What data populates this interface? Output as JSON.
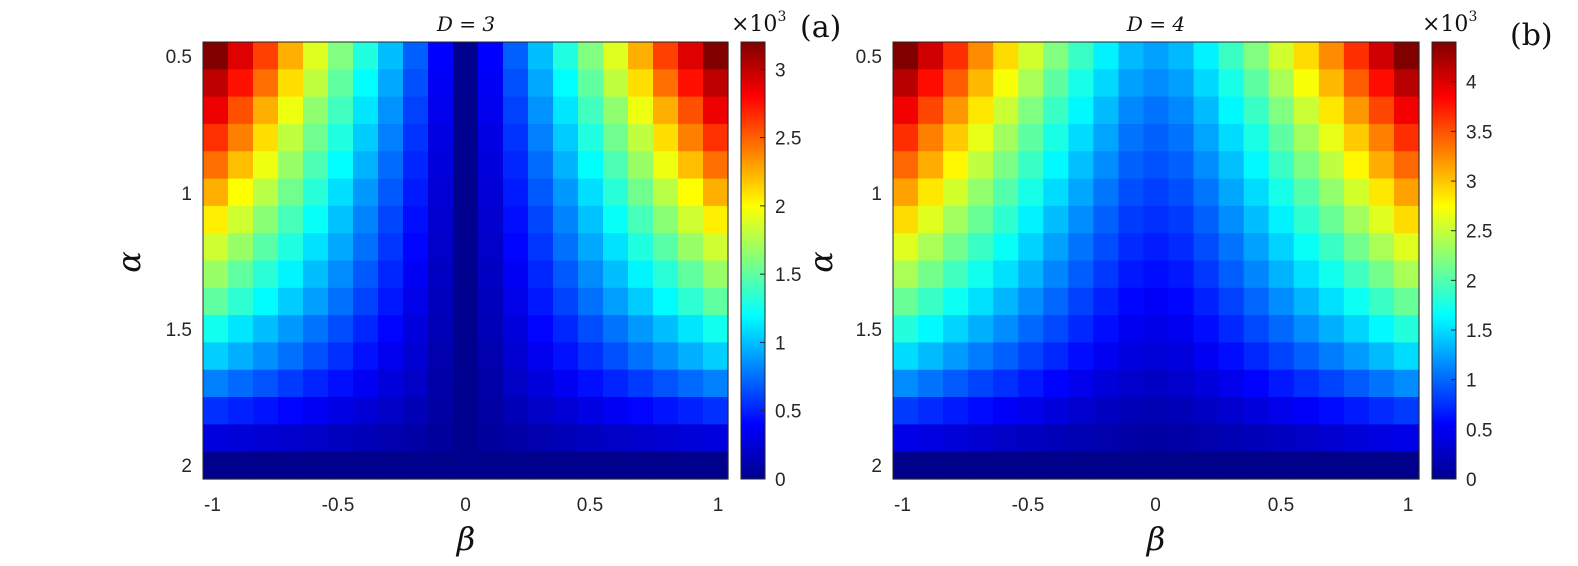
{
  "chart_data": [
    {
      "type": "heatmap",
      "panel_label": "(a)",
      "title": "D = 3",
      "xlabel": "β",
      "ylabel": "α",
      "x_ticks": [
        "-1",
        "-0.5",
        "0",
        "0.5",
        "1"
      ],
      "y_ticks": [
        "0.5",
        "1",
        "1.5",
        "2"
      ],
      "colorbar": {
        "multiplier": "×10",
        "multiplier_exp": "3",
        "ticks": [
          "0",
          "0.5",
          "1",
          "1.5",
          "2",
          "2.5",
          "3"
        ],
        "range": [
          0,
          3.2
        ]
      },
      "beta": [
        -1.0,
        -0.9,
        -0.8,
        -0.7,
        -0.6,
        -0.5,
        -0.4,
        -0.3,
        -0.2,
        -0.1,
        0.0,
        0.1,
        0.2,
        0.3,
        0.4,
        0.5,
        0.6,
        0.7,
        0.8,
        0.9,
        1.0
      ],
      "alpha": [
        0.5,
        0.6,
        0.7,
        0.8,
        0.9,
        1.0,
        1.1,
        1.2,
        1.3,
        1.4,
        1.5,
        1.6,
        1.7,
        1.8,
        1.9,
        2.0
      ],
      "values": [
        [
          3.2,
          2.9,
          2.6,
          2.25,
          1.9,
          1.6,
          1.3,
          1.0,
          0.7,
          0.4,
          0.05,
          0.4,
          0.7,
          1.0,
          1.3,
          1.6,
          1.9,
          2.25,
          2.6,
          2.9,
          3.2
        ],
        [
          3.0,
          2.75,
          2.45,
          2.1,
          1.8,
          1.5,
          1.2,
          0.93,
          0.65,
          0.37,
          0.05,
          0.37,
          0.65,
          0.93,
          1.2,
          1.5,
          1.8,
          2.1,
          2.45,
          2.75,
          3.0
        ],
        [
          2.85,
          2.55,
          2.25,
          1.95,
          1.65,
          1.4,
          1.12,
          0.86,
          0.6,
          0.34,
          0.05,
          0.34,
          0.6,
          0.86,
          1.12,
          1.4,
          1.65,
          1.95,
          2.25,
          2.55,
          2.85
        ],
        [
          2.65,
          2.4,
          2.1,
          1.8,
          1.55,
          1.3,
          1.04,
          0.8,
          0.56,
          0.31,
          0.05,
          0.31,
          0.56,
          0.8,
          1.04,
          1.3,
          1.55,
          1.8,
          2.1,
          2.4,
          2.65
        ],
        [
          2.45,
          2.2,
          1.95,
          1.68,
          1.44,
          1.2,
          0.96,
          0.74,
          0.52,
          0.29,
          0.05,
          0.29,
          0.52,
          0.74,
          0.96,
          1.2,
          1.44,
          1.68,
          1.95,
          2.2,
          2.45
        ],
        [
          2.25,
          2.0,
          1.78,
          1.55,
          1.33,
          1.1,
          0.88,
          0.68,
          0.48,
          0.27,
          0.05,
          0.27,
          0.48,
          0.68,
          0.88,
          1.1,
          1.33,
          1.55,
          1.78,
          2.0,
          2.25
        ],
        [
          2.05,
          1.85,
          1.63,
          1.42,
          1.22,
          1.01,
          0.81,
          0.62,
          0.44,
          0.25,
          0.05,
          0.25,
          0.44,
          0.62,
          0.81,
          1.01,
          1.22,
          1.42,
          1.63,
          1.85,
          2.05
        ],
        [
          1.85,
          1.68,
          1.48,
          1.3,
          1.11,
          0.93,
          0.75,
          0.57,
          0.41,
          0.23,
          0.05,
          0.23,
          0.41,
          0.57,
          0.75,
          0.93,
          1.11,
          1.3,
          1.48,
          1.68,
          1.85
        ],
        [
          1.68,
          1.5,
          1.33,
          1.17,
          1.0,
          0.84,
          0.68,
          0.52,
          0.37,
          0.21,
          0.05,
          0.21,
          0.37,
          0.52,
          0.68,
          0.84,
          1.0,
          1.17,
          1.33,
          1.5,
          1.68
        ],
        [
          1.5,
          1.34,
          1.19,
          1.04,
          0.9,
          0.75,
          0.61,
          0.47,
          0.33,
          0.19,
          0.05,
          0.19,
          0.33,
          0.47,
          0.61,
          0.75,
          0.9,
          1.04,
          1.19,
          1.34,
          1.5
        ],
        [
          1.25,
          1.12,
          1.0,
          0.88,
          0.76,
          0.64,
          0.52,
          0.41,
          0.29,
          0.17,
          0.05,
          0.17,
          0.29,
          0.41,
          0.52,
          0.64,
          0.76,
          0.88,
          1.0,
          1.12,
          1.25
        ],
        [
          1.05,
          0.95,
          0.85,
          0.75,
          0.65,
          0.55,
          0.45,
          0.35,
          0.26,
          0.15,
          0.05,
          0.15,
          0.26,
          0.35,
          0.45,
          0.55,
          0.65,
          0.75,
          0.85,
          0.95,
          1.05
        ],
        [
          0.8,
          0.73,
          0.66,
          0.58,
          0.51,
          0.44,
          0.36,
          0.29,
          0.22,
          0.13,
          0.05,
          0.13,
          0.22,
          0.29,
          0.36,
          0.44,
          0.51,
          0.58,
          0.66,
          0.73,
          0.8
        ],
        [
          0.55,
          0.5,
          0.46,
          0.41,
          0.37,
          0.32,
          0.27,
          0.22,
          0.17,
          0.11,
          0.05,
          0.11,
          0.17,
          0.22,
          0.27,
          0.32,
          0.37,
          0.41,
          0.46,
          0.5,
          0.55
        ],
        [
          0.3,
          0.28,
          0.26,
          0.24,
          0.22,
          0.2,
          0.17,
          0.15,
          0.12,
          0.09,
          0.05,
          0.09,
          0.12,
          0.15,
          0.17,
          0.2,
          0.22,
          0.24,
          0.26,
          0.28,
          0.3
        ],
        [
          0.04,
          0.04,
          0.04,
          0.04,
          0.04,
          0.04,
          0.04,
          0.04,
          0.04,
          0.04,
          0.04,
          0.04,
          0.04,
          0.04,
          0.04,
          0.04,
          0.04,
          0.04,
          0.04,
          0.04,
          0.04
        ]
      ]
    },
    {
      "type": "heatmap",
      "panel_label": "(b)",
      "title": "D = 4",
      "xlabel": "β",
      "ylabel": "α",
      "x_ticks": [
        "-1",
        "-0.5",
        "0",
        "0.5",
        "1"
      ],
      "y_ticks": [
        "0.5",
        "1",
        "1.5",
        "2"
      ],
      "colorbar": {
        "multiplier": "×10",
        "multiplier_exp": "3",
        "ticks": [
          "0",
          "0.5",
          "1",
          "1.5",
          "2",
          "2.5",
          "3",
          "3.5",
          "4"
        ],
        "range": [
          0,
          4.4
        ]
      },
      "beta": [
        -1.0,
        -0.9,
        -0.8,
        -0.7,
        -0.6,
        -0.5,
        -0.4,
        -0.3,
        -0.2,
        -0.1,
        0.0,
        0.1,
        0.2,
        0.3,
        0.4,
        0.5,
        0.6,
        0.7,
        0.8,
        0.9,
        1.0
      ],
      "alpha": [
        0.5,
        0.6,
        0.7,
        0.8,
        0.9,
        1.0,
        1.1,
        1.2,
        1.3,
        1.4,
        1.5,
        1.6,
        1.7,
        1.8,
        1.9,
        2.0
      ],
      "values": [
        [
          4.4,
          4.05,
          3.65,
          3.25,
          2.9,
          2.55,
          2.2,
          1.9,
          1.6,
          1.35,
          1.25,
          1.35,
          1.6,
          1.9,
          2.2,
          2.55,
          2.9,
          3.25,
          3.65,
          4.05,
          4.4
        ],
        [
          4.15,
          3.8,
          3.45,
          3.05,
          2.72,
          2.38,
          2.05,
          1.75,
          1.48,
          1.24,
          1.15,
          1.24,
          1.48,
          1.75,
          2.05,
          2.38,
          2.72,
          3.05,
          3.45,
          3.8,
          4.15
        ],
        [
          3.9,
          3.55,
          3.2,
          2.85,
          2.52,
          2.2,
          1.9,
          1.62,
          1.36,
          1.14,
          1.05,
          1.14,
          1.36,
          1.62,
          1.9,
          2.2,
          2.52,
          2.85,
          3.2,
          3.55,
          3.9
        ],
        [
          3.65,
          3.3,
          2.98,
          2.65,
          2.35,
          2.05,
          1.76,
          1.5,
          1.26,
          1.05,
          0.97,
          1.05,
          1.26,
          1.5,
          1.76,
          2.05,
          2.35,
          2.65,
          2.98,
          3.3,
          3.65
        ],
        [
          3.4,
          3.1,
          2.78,
          2.47,
          2.18,
          1.9,
          1.63,
          1.38,
          1.16,
          0.97,
          0.9,
          0.97,
          1.16,
          1.38,
          1.63,
          1.9,
          2.18,
          2.47,
          2.78,
          3.1,
          3.4
        ],
        [
          3.15,
          2.85,
          2.56,
          2.28,
          2.01,
          1.75,
          1.5,
          1.27,
          1.06,
          0.89,
          0.82,
          0.89,
          1.06,
          1.27,
          1.5,
          1.75,
          2.01,
          2.28,
          2.56,
          2.85,
          3.15
        ],
        [
          2.9,
          2.62,
          2.35,
          2.1,
          1.85,
          1.6,
          1.37,
          1.16,
          0.97,
          0.81,
          0.75,
          0.81,
          0.97,
          1.16,
          1.37,
          1.6,
          1.85,
          2.1,
          2.35,
          2.62,
          2.9
        ],
        [
          2.62,
          2.38,
          2.14,
          1.9,
          1.68,
          1.46,
          1.25,
          1.05,
          0.88,
          0.73,
          0.67,
          0.73,
          0.88,
          1.05,
          1.25,
          1.46,
          1.68,
          1.9,
          2.14,
          2.38,
          2.62
        ],
        [
          2.38,
          2.15,
          1.93,
          1.72,
          1.52,
          1.32,
          1.13,
          0.95,
          0.79,
          0.65,
          0.6,
          0.65,
          0.79,
          0.95,
          1.13,
          1.32,
          1.52,
          1.72,
          1.93,
          2.15,
          2.38
        ],
        [
          2.1,
          1.9,
          1.7,
          1.52,
          1.34,
          1.16,
          0.99,
          0.83,
          0.69,
          0.57,
          0.52,
          0.57,
          0.69,
          0.83,
          0.99,
          1.16,
          1.34,
          1.52,
          1.7,
          1.9,
          2.1
        ],
        [
          1.8,
          1.63,
          1.47,
          1.31,
          1.16,
          1.0,
          0.86,
          0.72,
          0.6,
          0.49,
          0.45,
          0.49,
          0.6,
          0.72,
          0.86,
          1.0,
          1.16,
          1.31,
          1.47,
          1.63,
          1.8
        ],
        [
          1.5,
          1.36,
          1.22,
          1.09,
          0.96,
          0.84,
          0.72,
          0.6,
          0.5,
          0.41,
          0.38,
          0.41,
          0.5,
          0.6,
          0.72,
          0.84,
          0.96,
          1.09,
          1.22,
          1.36,
          1.5
        ],
        [
          1.15,
          1.05,
          0.94,
          0.84,
          0.75,
          0.65,
          0.56,
          0.47,
          0.39,
          0.33,
          0.3,
          0.33,
          0.39,
          0.47,
          0.56,
          0.65,
          0.75,
          0.84,
          0.94,
          1.05,
          1.15
        ],
        [
          0.8,
          0.73,
          0.66,
          0.59,
          0.53,
          0.46,
          0.4,
          0.34,
          0.29,
          0.24,
          0.22,
          0.24,
          0.29,
          0.34,
          0.4,
          0.46,
          0.53,
          0.59,
          0.66,
          0.73,
          0.8
        ],
        [
          0.45,
          0.42,
          0.38,
          0.35,
          0.31,
          0.28,
          0.25,
          0.22,
          0.19,
          0.16,
          0.15,
          0.16,
          0.19,
          0.22,
          0.25,
          0.28,
          0.31,
          0.35,
          0.38,
          0.42,
          0.45
        ],
        [
          0.05,
          0.05,
          0.05,
          0.05,
          0.05,
          0.05,
          0.05,
          0.05,
          0.05,
          0.05,
          0.05,
          0.05,
          0.05,
          0.05,
          0.05,
          0.05,
          0.05,
          0.05,
          0.05,
          0.05,
          0.05
        ]
      ]
    }
  ]
}
